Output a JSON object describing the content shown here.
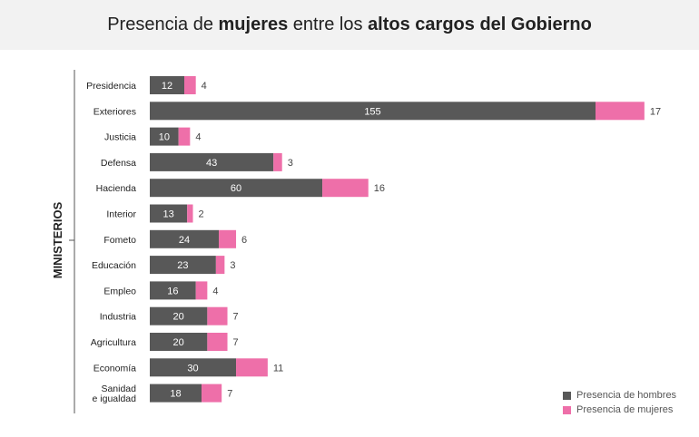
{
  "chart_data": {
    "type": "bar",
    "orientation": "horizontal",
    "stacked": true,
    "title_parts": [
      "Presencia de ",
      "mujeres",
      " entre los ",
      "altos cargos del Gobierno"
    ],
    "ylabel": "MINISTERIOS",
    "xlabel": "",
    "categories": [
      "Presidencia",
      "Exteriores",
      "Justicia",
      "Defensa",
      "Hacienda",
      "Interior",
      "Fometo",
      "Educación",
      "Empleo",
      "Industria",
      "Agricultura",
      "Economía",
      "Sanidad\ne igualdad"
    ],
    "series": [
      {
        "name": "Presencia de hombres",
        "color": "#585858",
        "values": [
          12,
          155,
          10,
          43,
          60,
          13,
          24,
          23,
          16,
          20,
          20,
          30,
          18
        ]
      },
      {
        "name": "Presencia de mujeres",
        "color": "#ee6fa9",
        "values": [
          4,
          17,
          4,
          3,
          16,
          2,
          6,
          3,
          4,
          7,
          7,
          11,
          7
        ]
      }
    ],
    "grid": false,
    "legend_position": "bottom-right"
  }
}
